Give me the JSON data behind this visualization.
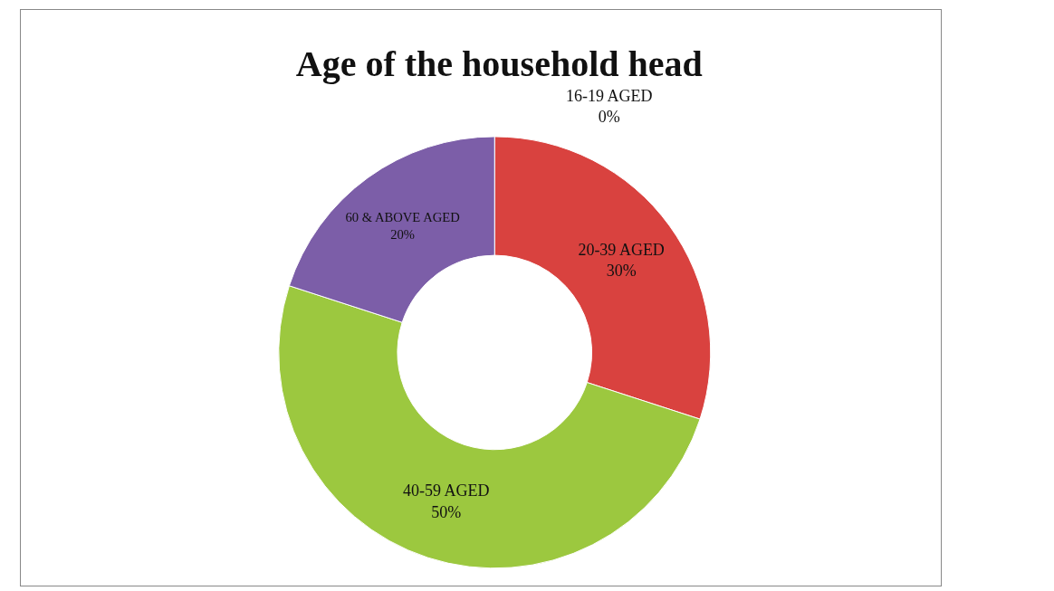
{
  "chart_data": {
    "type": "donut",
    "title": "Age of the household head",
    "categories": [
      "16-19 AGED",
      "20-39 AGED",
      "40-59 AGED",
      "60 & ABOVE AGED"
    ],
    "values": [
      0,
      30,
      50,
      20
    ],
    "colors": [
      "#4f81bd",
      "#d9423f",
      "#9cc83f",
      "#7c5ea8"
    ],
    "value_labels": [
      "0%",
      "30%",
      "50%",
      "20%"
    ],
    "legend": false
  }
}
